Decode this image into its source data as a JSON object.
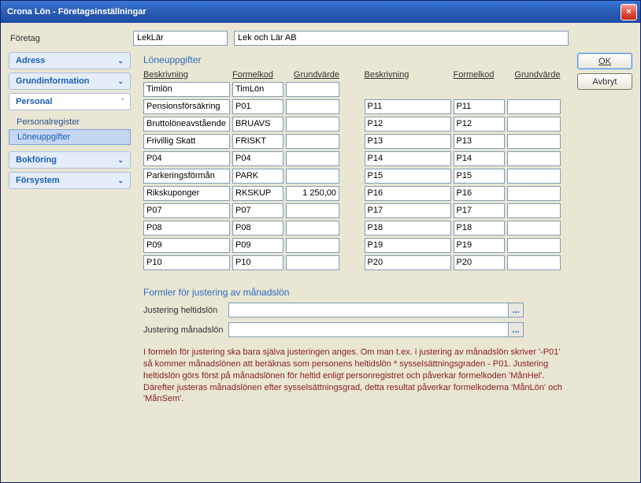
{
  "window": {
    "title": "Crona Lön - Företagsinställningar"
  },
  "header": {
    "label": "Företag",
    "code": "LekLär",
    "name": "Lek och Lär AB"
  },
  "buttons": {
    "ok": "OK",
    "cancel": "Avbryt"
  },
  "sidebar": {
    "sections": [
      {
        "label": "Adress",
        "expanded": false
      },
      {
        "label": "Grundinformation",
        "expanded": false
      },
      {
        "label": "Personal",
        "expanded": true,
        "items": [
          {
            "label": "Personalregister",
            "active": false
          },
          {
            "label": "Löneuppgifter",
            "active": true
          }
        ]
      },
      {
        "label": "Bokföring",
        "expanded": false
      },
      {
        "label": "Försystem",
        "expanded": false
      }
    ]
  },
  "content": {
    "section_title": "Löneuppgifter",
    "columns": {
      "beskrivning": "Beskrivning",
      "formelkod": "Formelkod",
      "grundvarde": "Grundvärde"
    },
    "left_rows": [
      {
        "b": "Timlön",
        "f": "TimLön",
        "g": ""
      },
      {
        "b": "Pensionsförsäkring",
        "f": "P01",
        "g": ""
      },
      {
        "b": "Bruttolöneavstående",
        "f": "BRUAVS",
        "g": ""
      },
      {
        "b": "Frivillig Skatt",
        "f": "FRISKT",
        "g": ""
      },
      {
        "b": "P04",
        "f": "P04",
        "g": ""
      },
      {
        "b": "Parkeringsförmån",
        "f": "PARK",
        "g": ""
      },
      {
        "b": "Rikskuponger",
        "f": "RKSKUP",
        "g": "1 250,00"
      },
      {
        "b": "P07",
        "f": "P07",
        "g": ""
      },
      {
        "b": "P08",
        "f": "P08",
        "g": ""
      },
      {
        "b": "P09",
        "f": "P09",
        "g": ""
      },
      {
        "b": "P10",
        "f": "P10",
        "g": ""
      }
    ],
    "right_rows": [
      {
        "b": "P11",
        "f": "P11",
        "g": ""
      },
      {
        "b": "P12",
        "f": "P12",
        "g": ""
      },
      {
        "b": "P13",
        "f": "P13",
        "g": ""
      },
      {
        "b": "P14",
        "f": "P14",
        "g": ""
      },
      {
        "b": "P15",
        "f": "P15",
        "g": ""
      },
      {
        "b": "P16",
        "f": "P16",
        "g": ""
      },
      {
        "b": "P17",
        "f": "P17",
        "g": ""
      },
      {
        "b": "P18",
        "f": "P18",
        "g": ""
      },
      {
        "b": "P19",
        "f": "P19",
        "g": ""
      },
      {
        "b": "P20",
        "f": "P20",
        "g": ""
      }
    ],
    "formulas": {
      "title": "Formler för justering av månadslön",
      "heltid_label": "Justering heltidslön",
      "manad_label": "Justering månadslön",
      "ellipsis": "..."
    },
    "info": "I formeln för justering ska bara själva justeringen anges. Om man t.ex.  i justering av månadslön skriver '-P01' så kommer månadslönen att beräknas som personens heltidslön * sysselsättningsgraden - P01. Justering heltidslön görs först på månadslönen för heltid enligt personregistret och påverkar formelkoden 'MånHel'. Därefter justeras månadslönen efter sysselsättningsgrad, detta resultat påverkar formelkoderna 'MånLön' och 'MånSem'."
  }
}
